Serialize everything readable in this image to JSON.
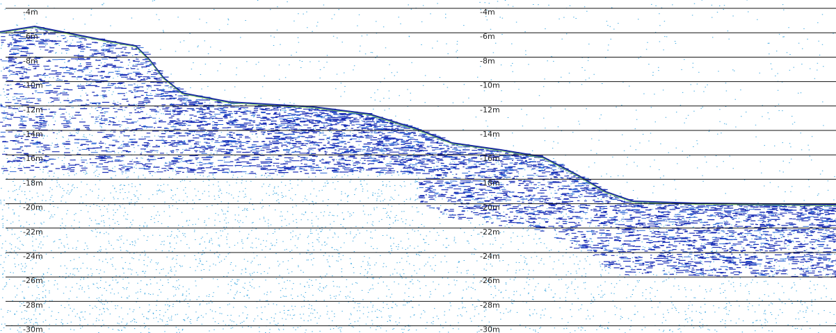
{
  "profile": {
    "left_scale": [
      "-4m",
      "-6m",
      "-8m",
      "-10m",
      "-12m",
      "-14m",
      "-16m",
      "-18m",
      "-20m",
      "-22m",
      "-24m",
      "-26m",
      "-28m",
      "-30m"
    ],
    "center_scale": [
      "-4m",
      "-6m",
      "-8m",
      "-10m",
      "-12m",
      "-14m",
      "-16m",
      "-18m",
      "-20m",
      "-22m",
      "-24m",
      "-26m",
      "-28m",
      "-30m"
    ]
  }
}
